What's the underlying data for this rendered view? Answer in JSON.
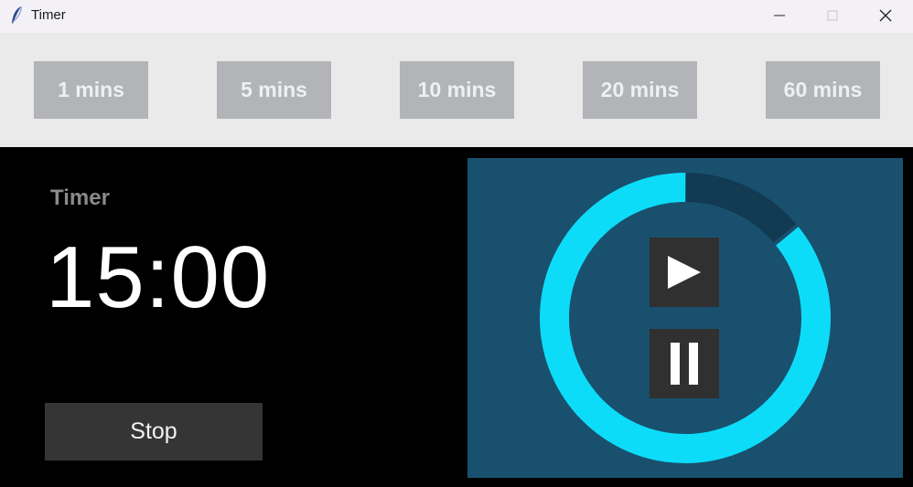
{
  "window": {
    "title": "Timer",
    "icon": "feather-icon"
  },
  "presets": [
    {
      "label": "1 mins"
    },
    {
      "label": "5 mins"
    },
    {
      "label": "10 mins"
    },
    {
      "label": "20 mins"
    },
    {
      "label": "60 mins"
    }
  ],
  "timer": {
    "label": "Timer",
    "time": "15:00",
    "stop_label": "Stop",
    "progress_fraction": 0.86
  },
  "controls": {
    "play_icon": "play-icon",
    "pause_icon": "pause-icon"
  },
  "colors": {
    "panel_bg": "#19506e",
    "ring_active": "#0ddcf9",
    "ring_inactive": "#123a52",
    "button_bg": "#303030",
    "preset_bg": "#b3b4b7"
  }
}
